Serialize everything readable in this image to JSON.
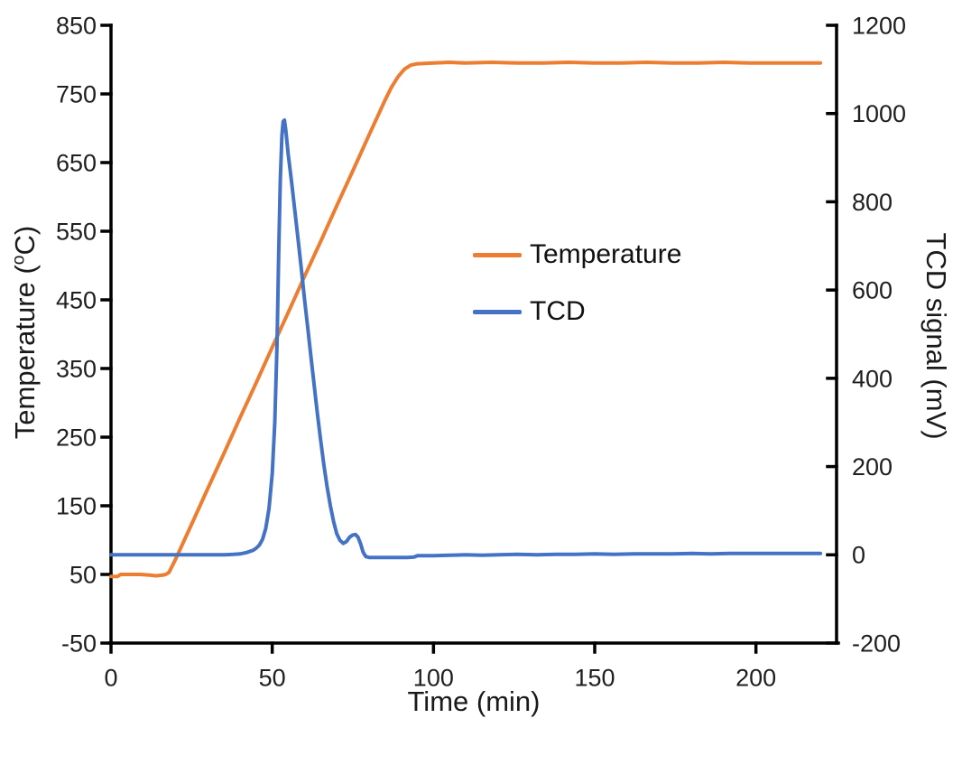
{
  "figure": {
    "background": "#ffffff"
  },
  "chart_data": {
    "type": "line",
    "title": "",
    "xlabel": "Time (min)",
    "ylabel_left": "Temperature (oC)",
    "ylabel_left_parts": {
      "pre": "Temperature (",
      "sup": "o",
      "post": "C)"
    },
    "ylabel_right": "TCD signal (mV)",
    "grid": false,
    "x_axis": {
      "min": 0,
      "max": 225,
      "ticks": [
        0,
        50,
        100,
        150,
        200
      ]
    },
    "y_left": {
      "min": -50,
      "max": 850,
      "ticks": [
        850,
        750,
        650,
        550,
        450,
        350,
        250,
        150,
        50,
        -50
      ]
    },
    "y_right": {
      "min": -200,
      "max": 1200,
      "ticks": [
        1200,
        1000,
        800,
        600,
        400,
        200,
        0,
        -200
      ]
    },
    "legend": {
      "position": "center-right",
      "entries": [
        {
          "label": "Temperature",
          "color": "#ED7D31"
        },
        {
          "label": "TCD",
          "color": "#4472C4"
        }
      ]
    },
    "series": [
      {
        "name": "Temperature",
        "axis": "left",
        "color": "#ED7D31",
        "points": [
          [
            0,
            47
          ],
          [
            2,
            47
          ],
          [
            3,
            50
          ],
          [
            6,
            50
          ],
          [
            9,
            50
          ],
          [
            12,
            49
          ],
          [
            14,
            48
          ],
          [
            16,
            49
          ],
          [
            17,
            50
          ],
          [
            18,
            53
          ],
          [
            20,
            72
          ],
          [
            25,
            123
          ],
          [
            30,
            175
          ],
          [
            35,
            226
          ],
          [
            40,
            278
          ],
          [
            45,
            329
          ],
          [
            50,
            381
          ],
          [
            55,
            432
          ],
          [
            60,
            484
          ],
          [
            65,
            535
          ],
          [
            70,
            587
          ],
          [
            75,
            638
          ],
          [
            80,
            690
          ],
          [
            85,
            741
          ],
          [
            87,
            760
          ],
          [
            89,
            775
          ],
          [
            91,
            786
          ],
          [
            93,
            792
          ],
          [
            95,
            794
          ],
          [
            100,
            795
          ],
          [
            105,
            796
          ],
          [
            110,
            795
          ],
          [
            118,
            796
          ],
          [
            126,
            795
          ],
          [
            134,
            795
          ],
          [
            142,
            796
          ],
          [
            150,
            795
          ],
          [
            158,
            795
          ],
          [
            166,
            796
          ],
          [
            174,
            795
          ],
          [
            182,
            795
          ],
          [
            190,
            796
          ],
          [
            198,
            795
          ],
          [
            206,
            795
          ],
          [
            214,
            795
          ],
          [
            220,
            795
          ]
        ]
      },
      {
        "name": "TCD",
        "axis": "right",
        "color": "#4472C4",
        "points": [
          [
            0,
            0
          ],
          [
            6,
            0
          ],
          [
            12,
            0
          ],
          [
            18,
            0
          ],
          [
            24,
            0
          ],
          [
            30,
            0
          ],
          [
            35,
            0
          ],
          [
            38,
            1
          ],
          [
            40,
            2
          ],
          [
            42,
            5
          ],
          [
            44,
            10
          ],
          [
            45,
            15
          ],
          [
            46,
            22
          ],
          [
            47,
            35
          ],
          [
            48,
            60
          ],
          [
            49,
            105
          ],
          [
            50,
            185
          ],
          [
            50.8,
            300
          ],
          [
            51.5,
            480
          ],
          [
            52,
            680
          ],
          [
            52.5,
            850
          ],
          [
            53,
            950
          ],
          [
            53.4,
            982
          ],
          [
            53.8,
            985
          ],
          [
            54.2,
            962
          ],
          [
            55,
            905
          ],
          [
            56,
            845
          ],
          [
            57,
            780
          ],
          [
            58,
            715
          ],
          [
            59,
            650
          ],
          [
            60,
            580
          ],
          [
            61,
            515
          ],
          [
            62,
            450
          ],
          [
            63,
            385
          ],
          [
            64,
            320
          ],
          [
            65,
            260
          ],
          [
            66,
            205
          ],
          [
            67,
            155
          ],
          [
            68,
            112
          ],
          [
            69,
            76
          ],
          [
            70,
            48
          ],
          [
            71,
            33
          ],
          [
            72,
            26
          ],
          [
            73,
            30
          ],
          [
            74,
            40
          ],
          [
            75,
            45
          ],
          [
            75.8,
            46
          ],
          [
            76.6,
            40
          ],
          [
            77.4,
            25
          ],
          [
            78.2,
            6
          ],
          [
            79,
            -4
          ],
          [
            80,
            -6
          ],
          [
            84,
            -6
          ],
          [
            88,
            -6
          ],
          [
            92,
            -6
          ],
          [
            94,
            -5
          ],
          [
            95,
            -2
          ],
          [
            100,
            -2
          ],
          [
            105,
            -1
          ],
          [
            110,
            0
          ],
          [
            115,
            -1
          ],
          [
            120,
            0
          ],
          [
            126,
            1
          ],
          [
            132,
            0
          ],
          [
            138,
            1
          ],
          [
            144,
            1
          ],
          [
            150,
            2
          ],
          [
            156,
            1
          ],
          [
            162,
            2
          ],
          [
            168,
            2
          ],
          [
            174,
            2
          ],
          [
            180,
            3
          ],
          [
            186,
            2
          ],
          [
            192,
            3
          ],
          [
            198,
            3
          ],
          [
            204,
            3
          ],
          [
            210,
            3
          ],
          [
            216,
            3
          ],
          [
            220,
            3
          ]
        ]
      }
    ]
  }
}
